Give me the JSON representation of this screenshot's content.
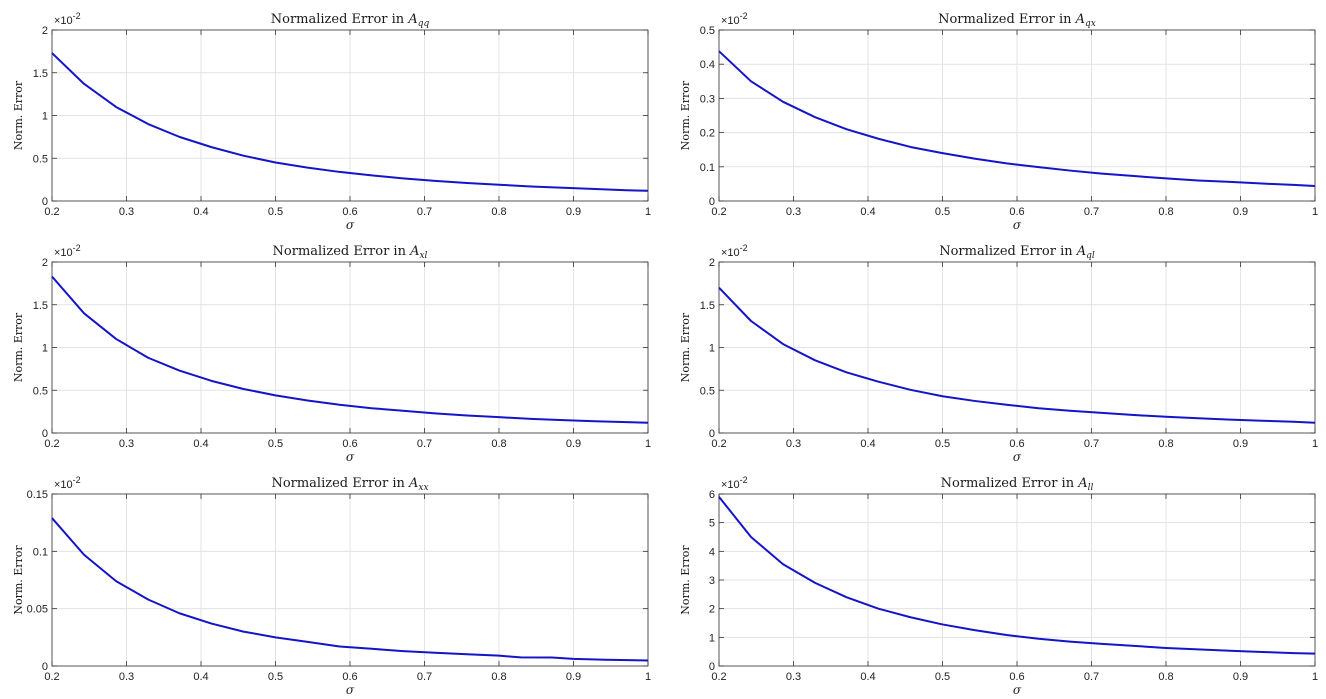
{
  "figure": {
    "background": "#ffffff",
    "line_color": "#1414c8"
  },
  "chart_data": [
    {
      "type": "line",
      "title": "Normalized Error in ",
      "title_symbol": "A",
      "title_subscript": "qq",
      "xlabel": "σ",
      "ylabel": "Norm. Error",
      "exponent_base": "×10",
      "exponent_power": "-2",
      "xlim": [
        0.2,
        1
      ],
      "ylim": [
        0,
        2
      ],
      "xticks": [
        "0.2",
        "0.3",
        "0.4",
        "0.5",
        "0.6",
        "0.7",
        "0.8",
        "0.9",
        "1"
      ],
      "yticks": [
        "0",
        "0.5",
        "1",
        "1.5",
        "2"
      ],
      "grid": true,
      "series": [
        {
          "x": [
            0.2,
            0.243,
            0.286,
            0.329,
            0.371,
            0.414,
            0.457,
            0.5,
            0.543,
            0.586,
            0.629,
            0.671,
            0.714,
            0.757,
            0.8,
            0.843,
            0.886,
            0.929,
            0.971,
            1.0
          ],
          "values": [
            1.73,
            1.37,
            1.1,
            0.9,
            0.75,
            0.63,
            0.53,
            0.45,
            0.39,
            0.34,
            0.3,
            0.265,
            0.235,
            0.21,
            0.19,
            0.17,
            0.155,
            0.14,
            0.125,
            0.12
          ]
        }
      ]
    },
    {
      "type": "line",
      "title": "Normalized Error in ",
      "title_symbol": "A",
      "title_subscript": "qx",
      "xlabel": "σ",
      "ylabel": "Norm. Error",
      "exponent_base": "×10",
      "exponent_power": "-2",
      "xlim": [
        0.2,
        1
      ],
      "ylim": [
        0,
        0.5
      ],
      "xticks": [
        "0.2",
        "0.3",
        "0.4",
        "0.5",
        "0.6",
        "0.7",
        "0.8",
        "0.9",
        "1"
      ],
      "yticks": [
        "0",
        "0.1",
        "0.2",
        "0.3",
        "0.4",
        "0.5"
      ],
      "grid": true,
      "series": [
        {
          "x": [
            0.2,
            0.243,
            0.286,
            0.329,
            0.371,
            0.414,
            0.457,
            0.5,
            0.543,
            0.586,
            0.629,
            0.671,
            0.714,
            0.757,
            0.8,
            0.843,
            0.886,
            0.929,
            0.971,
            1.0
          ],
          "values": [
            0.438,
            0.35,
            0.29,
            0.245,
            0.21,
            0.182,
            0.158,
            0.14,
            0.124,
            0.11,
            0.099,
            0.089,
            0.08,
            0.073,
            0.066,
            0.06,
            0.056,
            0.051,
            0.047,
            0.044
          ]
        }
      ]
    },
    {
      "type": "line",
      "title": "Normalized Error in ",
      "title_symbol": "A",
      "title_subscript": "xl",
      "xlabel": "σ",
      "ylabel": "Norm. Error",
      "exponent_base": "×10",
      "exponent_power": "-2",
      "xlim": [
        0.2,
        1
      ],
      "ylim": [
        0,
        2
      ],
      "xticks": [
        "0.2",
        "0.3",
        "0.4",
        "0.5",
        "0.6",
        "0.7",
        "0.8",
        "0.9",
        "1"
      ],
      "yticks": [
        "0",
        "0.5",
        "1",
        "1.5",
        "2"
      ],
      "grid": true,
      "series": [
        {
          "x": [
            0.2,
            0.243,
            0.286,
            0.329,
            0.371,
            0.414,
            0.457,
            0.5,
            0.543,
            0.586,
            0.629,
            0.671,
            0.714,
            0.757,
            0.8,
            0.843,
            0.886,
            0.929,
            0.971,
            1.0
          ],
          "values": [
            1.83,
            1.4,
            1.1,
            0.88,
            0.73,
            0.61,
            0.515,
            0.44,
            0.38,
            0.33,
            0.29,
            0.26,
            0.23,
            0.205,
            0.185,
            0.165,
            0.15,
            0.138,
            0.127,
            0.12
          ]
        }
      ]
    },
    {
      "type": "line",
      "title": "Normalized Error in ",
      "title_symbol": "A",
      "title_subscript": "ql",
      "xlabel": "σ",
      "ylabel": "Norm. Error",
      "exponent_base": "×10",
      "exponent_power": "-2",
      "xlim": [
        0.2,
        1
      ],
      "ylim": [
        0,
        2
      ],
      "xticks": [
        "0.2",
        "0.3",
        "0.4",
        "0.5",
        "0.6",
        "0.7",
        "0.8",
        "0.9",
        "1"
      ],
      "yticks": [
        "0",
        "0.5",
        "1",
        "1.5",
        "2"
      ],
      "grid": true,
      "series": [
        {
          "x": [
            0.2,
            0.243,
            0.286,
            0.329,
            0.371,
            0.414,
            0.457,
            0.5,
            0.543,
            0.586,
            0.629,
            0.671,
            0.714,
            0.757,
            0.8,
            0.843,
            0.886,
            0.929,
            0.971,
            1.0
          ],
          "values": [
            1.7,
            1.31,
            1.04,
            0.85,
            0.71,
            0.6,
            0.505,
            0.43,
            0.375,
            0.33,
            0.29,
            0.26,
            0.235,
            0.21,
            0.19,
            0.172,
            0.157,
            0.144,
            0.132,
            0.12
          ]
        }
      ]
    },
    {
      "type": "line",
      "title": "Normalized Error in ",
      "title_symbol": "A",
      "title_subscript": "xx",
      "xlabel": "σ",
      "ylabel": "Norm. Error",
      "exponent_base": "×10",
      "exponent_power": "-2",
      "xlim": [
        0.2,
        1
      ],
      "ylim": [
        0,
        0.15
      ],
      "xticks": [
        "0.2",
        "0.3",
        "0.4",
        "0.5",
        "0.6",
        "0.7",
        "0.8",
        "0.9",
        "1"
      ],
      "yticks": [
        "0",
        "0.05",
        "0.1",
        "0.15"
      ],
      "grid": true,
      "series": [
        {
          "x": [
            0.2,
            0.243,
            0.286,
            0.329,
            0.371,
            0.414,
            0.457,
            0.5,
            0.543,
            0.586,
            0.629,
            0.671,
            0.714,
            0.757,
            0.8,
            0.829,
            0.871,
            0.9,
            0.943,
            1.0
          ],
          "values": [
            0.129,
            0.097,
            0.074,
            0.058,
            0.046,
            0.037,
            0.03,
            0.025,
            0.021,
            0.017,
            0.015,
            0.013,
            0.0115,
            0.0102,
            0.009,
            0.0075,
            0.0074,
            0.0062,
            0.0055,
            0.0048
          ]
        }
      ]
    },
    {
      "type": "line",
      "title": "Normalized Error in ",
      "title_symbol": "A",
      "title_subscript": "ll",
      "xlabel": "σ",
      "ylabel": "Norm. Error",
      "exponent_base": "×10",
      "exponent_power": "-2",
      "xlim": [
        0.2,
        1
      ],
      "ylim": [
        0,
        6
      ],
      "xticks": [
        "0.2",
        "0.3",
        "0.4",
        "0.5",
        "0.6",
        "0.7",
        "0.8",
        "0.9",
        "1"
      ],
      "yticks": [
        "0",
        "1",
        "2",
        "3",
        "4",
        "5",
        "6"
      ],
      "grid": true,
      "series": [
        {
          "x": [
            0.2,
            0.243,
            0.286,
            0.329,
            0.371,
            0.414,
            0.457,
            0.5,
            0.543,
            0.586,
            0.629,
            0.671,
            0.714,
            0.757,
            0.8,
            0.843,
            0.886,
            0.929,
            0.971,
            1.0
          ],
          "values": [
            5.9,
            4.5,
            3.55,
            2.9,
            2.4,
            2.0,
            1.7,
            1.45,
            1.25,
            1.08,
            0.95,
            0.85,
            0.77,
            0.7,
            0.63,
            0.58,
            0.53,
            0.49,
            0.45,
            0.43
          ]
        }
      ]
    }
  ]
}
